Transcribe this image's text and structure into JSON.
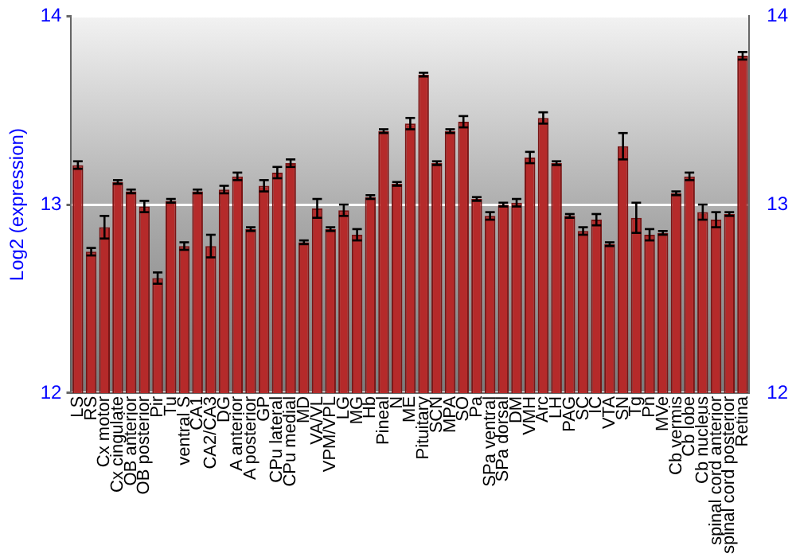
{
  "chart_data": {
    "type": "bar",
    "ylabel": "Log2 (expression)",
    "categories": [
      "LS",
      "RS",
      "Cx motor",
      "Cx cingulate",
      "OB anterior",
      "OB posterior",
      "Pir",
      "Tu",
      "ventral S",
      "CA1",
      "CA2/CA3",
      "DG",
      "A anterior",
      "A posterior",
      "GP",
      "CPu lateral",
      "CPu medial",
      "MD",
      "VA/VL",
      "VPM/VPL",
      "LG",
      "MG",
      "Hb",
      "Pineal",
      "N",
      "ME",
      "Pituitary",
      "SCN",
      "MPA",
      "SO",
      "Pa",
      "SPa ventral",
      "SPa dorsal",
      "DM",
      "VMH",
      "Arc",
      "LH",
      "PAG",
      "SC",
      "IC",
      "VTA",
      "SN",
      "Tg",
      "Pn",
      "MVe",
      "Cb vermis",
      "Cb lobe",
      "Cb nucleus",
      "spinal cord anterior",
      "spinal cord posterior",
      "Retina"
    ],
    "values": [
      13.21,
      12.75,
      12.88,
      13.12,
      13.07,
      12.99,
      12.61,
      13.02,
      12.78,
      13.07,
      12.78,
      13.08,
      13.15,
      12.87,
      13.1,
      13.17,
      13.22,
      12.8,
      12.98,
      12.87,
      12.97,
      12.84,
      13.04,
      13.39,
      13.11,
      13.43,
      13.69,
      13.22,
      13.39,
      13.44,
      13.03,
      12.94,
      13,
      13.01,
      13.25,
      13.46,
      13.22,
      12.94,
      12.86,
      12.92,
      12.79,
      13.31,
      12.93,
      12.84,
      12.85,
      13.06,
      13.15,
      12.96,
      12.92,
      12.95,
      13.79
    ],
    "errors": [
      0.02,
      0.02,
      0.06,
      0.01,
      0.01,
      0.03,
      0.03,
      0.01,
      0.02,
      0.01,
      0.06,
      0.02,
      0.02,
      0.01,
      0.03,
      0.03,
      0.02,
      0.01,
      0.05,
      0.01,
      0.03,
      0.03,
      0.01,
      0.01,
      0.01,
      0.03,
      0.01,
      0.01,
      0.01,
      0.03,
      0.01,
      0.02,
      0.01,
      0.02,
      0.03,
      0.03,
      0.01,
      0.01,
      0.02,
      0.03,
      0.01,
      0.07,
      0.08,
      0.03,
      0.01,
      0.01,
      0.02,
      0.04,
      0.04,
      0.01,
      0.02
    ],
    "color": "#b52a2a",
    "ylim": [
      12,
      14
    ],
    "yticks": [
      12,
      13,
      14
    ],
    "y2lim": [
      12,
      14
    ],
    "y2ticks": [
      12,
      13,
      14
    ],
    "grid": "y",
    "legend": false
  }
}
